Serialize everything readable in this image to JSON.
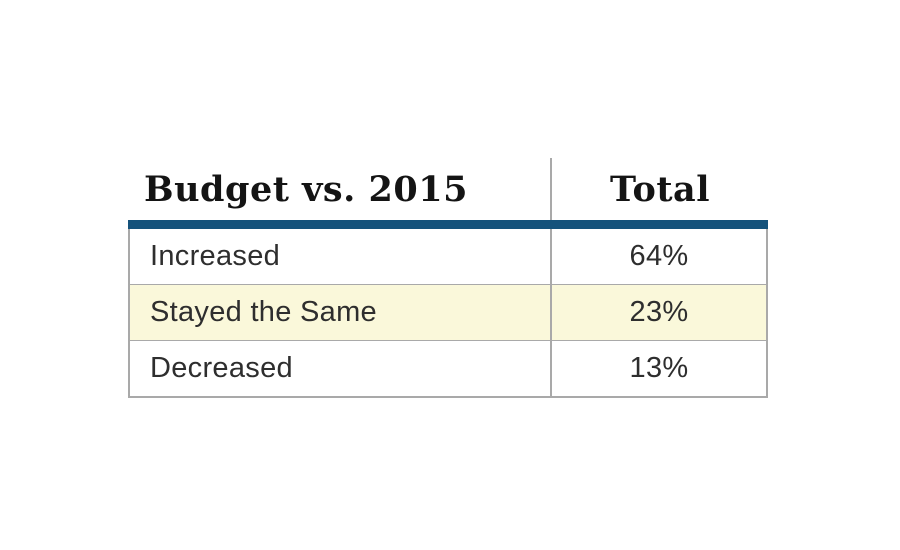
{
  "table": {
    "header": {
      "label_col": "Budget vs. 2015",
      "value_col": "Total"
    },
    "rows": [
      {
        "label": "Increased",
        "value": "64%",
        "highlighted": false
      },
      {
        "label": "Stayed the Same",
        "value": "23%",
        "highlighted": true
      },
      {
        "label": "Decreased",
        "value": "13%",
        "highlighted": false
      }
    ]
  },
  "colors": {
    "accent_bar": "#15527b",
    "highlight_row": "#faf8da",
    "border_color": "#a9a9a9",
    "header_text": "#141414",
    "body_text": "#2e2e2e"
  },
  "chart_data": {
    "type": "table",
    "title": "Budget vs. 2015",
    "columns": [
      "Budget vs. 2015",
      "Total"
    ],
    "rows": [
      [
        "Increased",
        "64%"
      ],
      [
        "Stayed the Same",
        "23%"
      ],
      [
        "Decreased",
        "13%"
      ]
    ],
    "values": {
      "Increased": 64,
      "Stayed the Same": 23,
      "Decreased": 13
    },
    "unit": "%",
    "highlighted_row": "Stayed the Same"
  }
}
